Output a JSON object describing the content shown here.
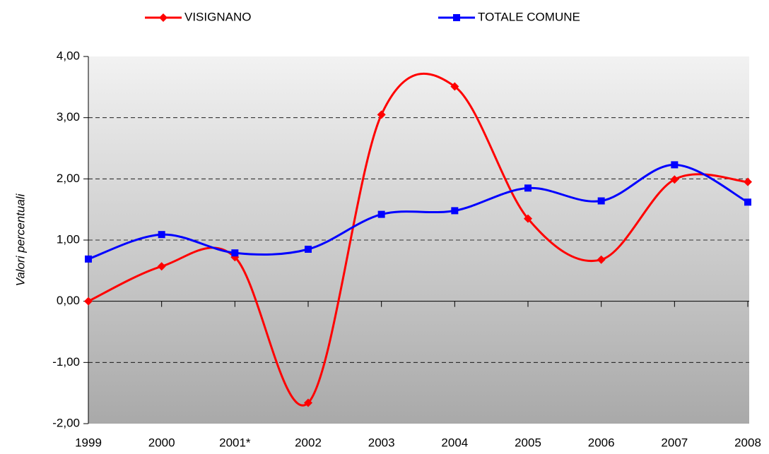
{
  "chart_data": {
    "type": "line",
    "y_label": "Valori percentuali",
    "categories": [
      "1999",
      "2000",
      "2001*",
      "2002",
      "2003",
      "2004",
      "2005",
      "2006",
      "2007",
      "2008"
    ],
    "series": [
      {
        "name": "VISIGNANO",
        "color": "#ff0000",
        "marker": "diamond",
        "values": [
          0.0,
          0.57,
          0.72,
          -1.66,
          3.05,
          3.51,
          1.35,
          0.68,
          1.99,
          1.95
        ]
      },
      {
        "name": "TOTALE COMUNE",
        "color": "#0000ff",
        "marker": "square",
        "values": [
          0.69,
          1.09,
          0.79,
          0.85,
          1.42,
          1.48,
          1.85,
          1.64,
          2.23,
          1.62
        ]
      }
    ],
    "ylim": [
      -2,
      4
    ],
    "yticks": [
      {
        "value": -2,
        "label": "-2,00"
      },
      {
        "value": -1,
        "label": "-1,00"
      },
      {
        "value": 0,
        "label": "0,00"
      },
      {
        "value": 1,
        "label": "1,00"
      },
      {
        "value": 2,
        "label": "2,00"
      },
      {
        "value": 3,
        "label": "3,00"
      },
      {
        "value": 4,
        "label": "4,00"
      }
    ],
    "grid": true,
    "legend": "top"
  }
}
